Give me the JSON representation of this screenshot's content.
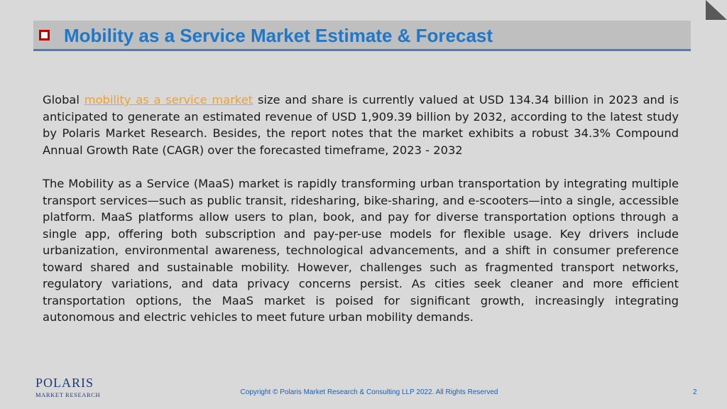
{
  "slide": {
    "title": "Mobility as a Service Market Estimate & Forecast",
    "paragraph1": {
      "prefix": "Global ",
      "link_text": "mobility as a service market",
      "suffix": " size and share is currently valued at USD 134.34 billion in 2023 and is anticipated to generate an estimated revenue of USD 1,909.39 billion by 2032, according to the latest study by Polaris Market Research. Besides, the report notes that the market exhibits a robust 34.3% Compound Annual Growth Rate (CAGR) over the forecasted timeframe, 2023 - 2032"
    },
    "paragraph2": "The Mobility as a Service (MaaS) market is rapidly transforming urban transportation by integrating multiple transport services—such as public transit, ridesharing, bike-sharing, and e-scooters—into a single, accessible platform. MaaS platforms allow users to plan, book, and pay for diverse transportation options through a single app, offering both subscription and pay-per-use models for flexible usage. Key drivers include urbanization, environmental awareness, technological advancements, and a shift in consumer preference toward shared and sustainable mobility. However, challenges such as fragmented transport networks, regulatory variations, and data privacy concerns persist. As cities seek cleaner and more efficient transportation options, the MaaS market is poised for significant growth, increasingly integrating autonomous and electric vehicles to meet future urban mobility demands."
  },
  "logo": {
    "top": "POLARIS",
    "bottom": "MARKET RESEARCH"
  },
  "footer": {
    "copyright": "Copyright © Polaris Market Research & Consulting LLP 2022. All Rights Reserved",
    "page_number": "2"
  },
  "colors": {
    "background": "#d9d9d9",
    "title_bar": "#bfbfbf",
    "title_text": "#1f77c8",
    "bullet_border": "#c00000",
    "link": "#f0a030",
    "footer_text": "#1f5fa8",
    "logo": "#1f3b73"
  }
}
